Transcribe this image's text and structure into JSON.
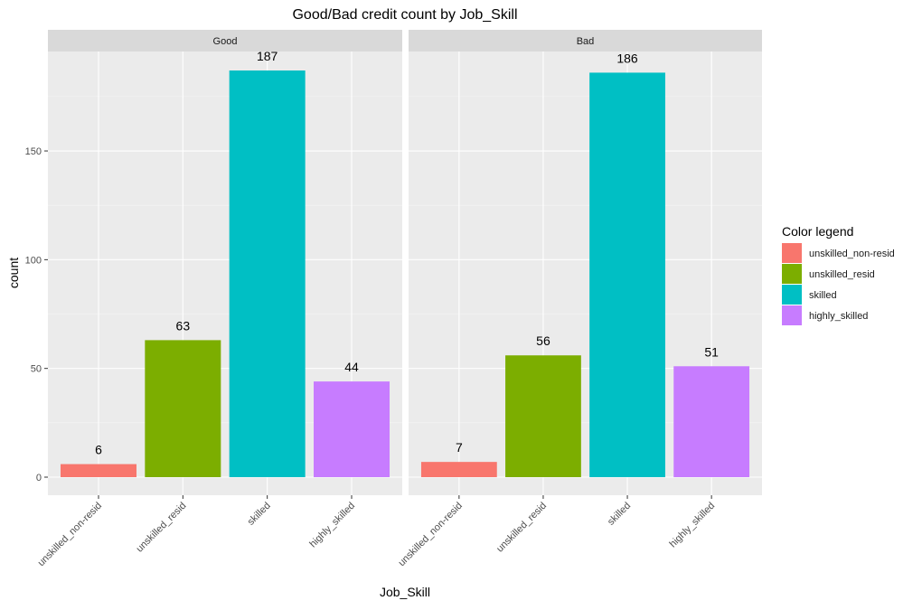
{
  "chart_data": {
    "type": "bar",
    "title": "Good/Bad credit count by Job_Skill",
    "xlabel": "Job_Skill",
    "ylabel": "count",
    "ylim": [
      0,
      196
    ],
    "yticks": [
      0,
      50,
      100,
      150
    ],
    "grid": true,
    "facets": [
      "Good",
      "Bad"
    ],
    "categories": [
      "unskilled_non-resid",
      "unskilled_resid",
      "skilled",
      "highly_skilled"
    ],
    "series": [
      {
        "name": "Good",
        "values": [
          6,
          63,
          187,
          44
        ]
      },
      {
        "name": "Bad",
        "values": [
          7,
          56,
          186,
          51
        ]
      }
    ],
    "colors": [
      "#F8766D",
      "#7CAE00",
      "#00BFC4",
      "#C77CFF"
    ],
    "legend": {
      "title": "Color legend",
      "position": "right",
      "entries": [
        "unskilled_non-resid",
        "unskilled_resid",
        "skilled",
        "highly_skilled"
      ]
    }
  }
}
